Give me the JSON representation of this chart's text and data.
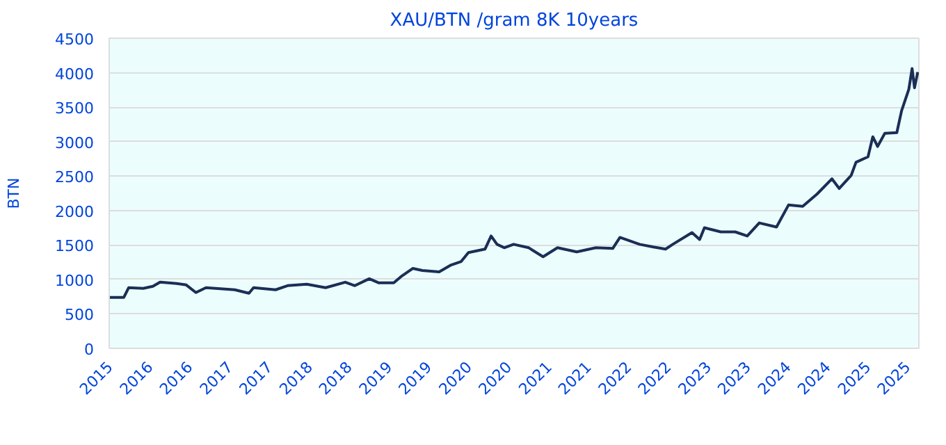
{
  "chart_data": {
    "type": "line",
    "title": "XAU/BTN /gram 8K 10years",
    "ylabel": "BTN",
    "x": [
      "2015-07-01",
      "2015-09-06",
      "2015-09-28",
      "2015-12-04",
      "2016-01-17",
      "2016-02-19",
      "2016-05-05",
      "2016-06-18",
      "2016-08-01",
      "2016-09-16",
      "2017-01-26",
      "2017-04-01",
      "2017-04-22",
      "2017-08-01",
      "2017-09-25",
      "2017-12-22",
      "2018-03-18",
      "2018-06-16",
      "2018-07-30",
      "2018-10-04",
      "2018-11-17",
      "2019-01-24",
      "2019-02-26",
      "2019-04-21",
      "2019-06-04",
      "2019-08-20",
      "2019-10-14",
      "2019-11-29",
      "2020-01-01",
      "2020-03-17",
      "2020-04-14",
      "2020-05-11",
      "2020-06-13",
      "2020-07-26",
      "2020-10-03",
      "2020-12-08",
      "2021-02-12",
      "2021-05-11",
      "2021-08-07",
      "2021-10-23",
      "2021-11-25",
      "2022-02-23",
      "2022-04-28",
      "2022-06-22",
      "2022-07-25",
      "2022-10-21",
      "2022-11-25",
      "2022-12-17",
      "2023-03-02",
      "2023-05-07",
      "2023-07-01",
      "2023-08-25",
      "2023-11-12",
      "2024-01-06",
      "2024-03-11",
      "2024-05-16",
      "2024-07-23",
      "2024-08-25",
      "2024-10-19",
      "2024-11-10",
      "2025-01-04",
      "2025-01-26",
      "2025-02-17",
      "2025-03-22",
      "2025-05-16",
      "2025-06-07",
      "2025-07-10",
      "2025-07-25",
      "2025-08-05",
      "2025-08-20"
    ],
    "series": [
      {
        "color": "#1a2e55",
        "values": [
          740,
          740,
          880,
          870,
          900,
          960,
          940,
          920,
          810,
          880,
          850,
          800,
          880,
          850,
          910,
          930,
          880,
          960,
          910,
          1010,
          950,
          950,
          1040,
          1160,
          1130,
          1110,
          1210,
          1260,
          1390,
          1440,
          1630,
          1510,
          1460,
          1510,
          1460,
          1330,
          1460,
          1400,
          1460,
          1450,
          1610,
          1510,
          1470,
          1440,
          1510,
          1680,
          1580,
          1750,
          1690,
          1690,
          1630,
          1820,
          1760,
          2080,
          2060,
          2240,
          2460,
          2320,
          2510,
          2700,
          2780,
          3070,
          2930,
          3120,
          3130,
          3450,
          3760,
          4060,
          3780,
          4010
        ]
      }
    ],
    "xlim": [
      "2015-07-01",
      "2025-08-25"
    ],
    "xticks": [
      {
        "value": "2015-07-01",
        "label": "2015"
      },
      {
        "value": "2016-01-01",
        "label": "2016"
      },
      {
        "value": "2016-07-01",
        "label": "2016"
      },
      {
        "value": "2017-01-01",
        "label": "2017"
      },
      {
        "value": "2017-07-01",
        "label": "2017"
      },
      {
        "value": "2018-01-01",
        "label": "2018"
      },
      {
        "value": "2018-07-01",
        "label": "2018"
      },
      {
        "value": "2019-01-01",
        "label": "2019"
      },
      {
        "value": "2019-07-01",
        "label": "2019"
      },
      {
        "value": "2020-01-01",
        "label": "2020"
      },
      {
        "value": "2020-07-01",
        "label": "2020"
      },
      {
        "value": "2021-01-01",
        "label": "2021"
      },
      {
        "value": "2021-07-01",
        "label": "2021"
      },
      {
        "value": "2022-01-01",
        "label": "2022"
      },
      {
        "value": "2022-07-01",
        "label": "2022"
      },
      {
        "value": "2023-01-01",
        "label": "2023"
      },
      {
        "value": "2023-07-01",
        "label": "2023"
      },
      {
        "value": "2024-01-01",
        "label": "2024"
      },
      {
        "value": "2024-07-01",
        "label": "2024"
      },
      {
        "value": "2025-01-01",
        "label": "2025"
      },
      {
        "value": "2025-07-01",
        "label": "2025"
      }
    ],
    "ylim": [
      0,
      4500
    ],
    "yticks": [
      0,
      500,
      1000,
      1500,
      2000,
      2500,
      3000,
      3500,
      4000,
      4500
    ],
    "grid": "y",
    "marker": "none",
    "line_style": "solid"
  }
}
